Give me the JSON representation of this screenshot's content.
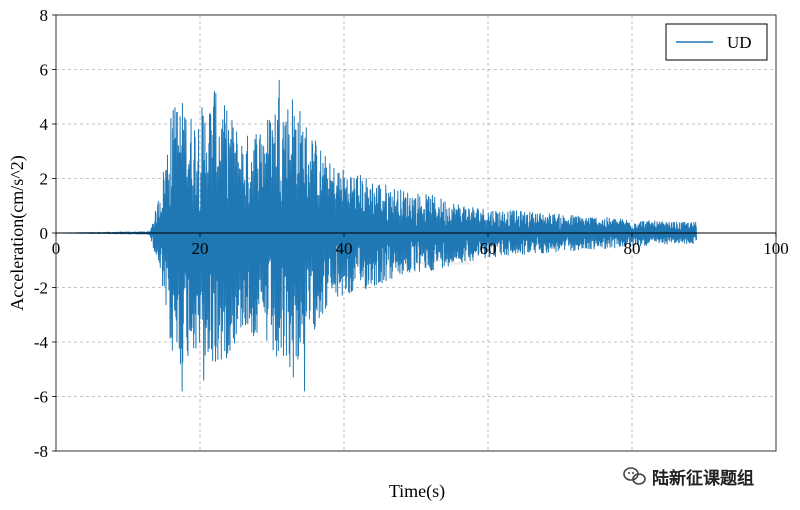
{
  "chart_data": {
    "type": "line",
    "xlabel": "Time(s)",
    "ylabel": "Acceleration(cm/s^2)",
    "xlim": [
      0,
      100
    ],
    "ylim": [
      -8,
      8
    ],
    "x_ticks": [
      0,
      20,
      40,
      60,
      80,
      100
    ],
    "y_ticks": [
      -8,
      -6,
      -4,
      -2,
      0,
      2,
      4,
      6,
      8
    ],
    "grid": true,
    "legend_position": "top-right",
    "series": [
      {
        "name": "UD",
        "color": "#1f77b4",
        "time_range": [
          0,
          89
        ],
        "envelope": [
          [
            0,
            0.0
          ],
          [
            13,
            0.05
          ],
          [
            14,
            1.0
          ],
          [
            15,
            2.5
          ],
          [
            16,
            4.5
          ],
          [
            17,
            5.0
          ],
          [
            18,
            4.8
          ],
          [
            19,
            4.3
          ],
          [
            20,
            4.6
          ],
          [
            22,
            5.2
          ],
          [
            24,
            4.5
          ],
          [
            26,
            3.5
          ],
          [
            28,
            4.0
          ],
          [
            30,
            4.5
          ],
          [
            31,
            5.5
          ],
          [
            32,
            4.8
          ],
          [
            33,
            5.4
          ],
          [
            34,
            4.5
          ],
          [
            36,
            3.5
          ],
          [
            38,
            2.6
          ],
          [
            40,
            2.4
          ],
          [
            44,
            2.0
          ],
          [
            48,
            1.6
          ],
          [
            52,
            1.4
          ],
          [
            56,
            1.1
          ],
          [
            60,
            0.9
          ],
          [
            65,
            0.8
          ],
          [
            70,
            0.7
          ],
          [
            75,
            0.6
          ],
          [
            80,
            0.5
          ],
          [
            85,
            0.4
          ],
          [
            89,
            0.4
          ]
        ],
        "peaks": [
          {
            "t": 17.5,
            "a": -5.8
          },
          {
            "t": 22,
            "a": 5.2
          },
          {
            "t": 31,
            "a": 5.6
          },
          {
            "t": 34.5,
            "a": -5.8
          },
          {
            "t": 16.5,
            "a": 4.6
          },
          {
            "t": 20.5,
            "a": -5.4
          }
        ]
      }
    ]
  },
  "watermark": {
    "text": "陆新征课题组"
  },
  "footer": {
    "brand_icon": "wechat-icon",
    "label": "陆新征课题组"
  }
}
